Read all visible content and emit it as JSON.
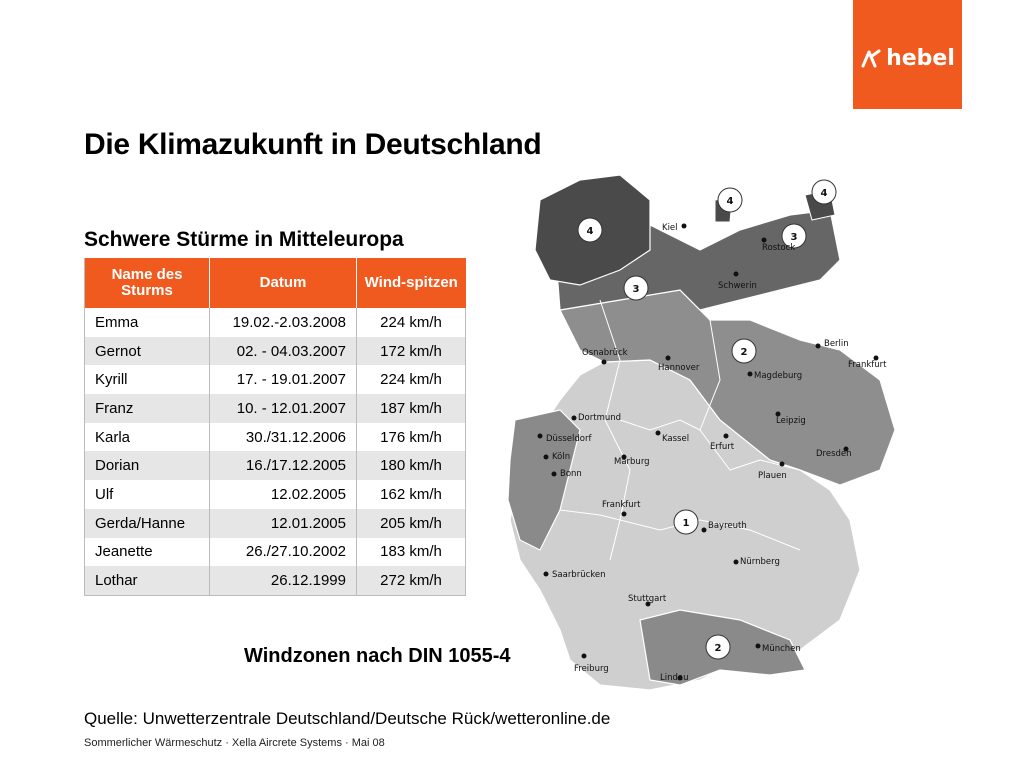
{
  "logo": {
    "text": "hebel",
    "icon": "hebel-logo-icon",
    "color": "#f05a1e"
  },
  "title": "Die Klimazukunft in Deutschland",
  "subtitle": "Schwere Stürme in Mitteleuropa",
  "table": {
    "headers": [
      "Name des Sturms",
      "Datum",
      "Wind-spitzen"
    ],
    "rows": [
      {
        "name": "Emma",
        "date": "19.02.-2.03.2008",
        "wind": "224 km/h"
      },
      {
        "name": "Gernot",
        "date": "02. - 04.03.2007",
        "wind": "172 km/h"
      },
      {
        "name": "Kyrill",
        "date": "17. - 19.01.2007",
        "wind": "224 km/h"
      },
      {
        "name": "Franz",
        "date": "10. - 12.01.2007",
        "wind": "187 km/h"
      },
      {
        "name": "Karla",
        "date": "30./31.12.2006",
        "wind": "176 km/h"
      },
      {
        "name": "Dorian",
        "date": "16./17.12.2005",
        "wind": "180 km/h"
      },
      {
        "name": "Ulf",
        "date": "12.02.2005",
        "wind": "162 km/h"
      },
      {
        "name": "Gerda/Hanne",
        "date": "12.01.2005",
        "wind": "205 km/h"
      },
      {
        "name": "Jeanette",
        "date": "26./27.10.2002",
        "wind": "183 km/h"
      },
      {
        "name": "Lothar",
        "date": "26.12.1999",
        "wind": "272 km/h"
      }
    ]
  },
  "map": {
    "caption": "Windzonen nach DIN 1055-4",
    "zones": [
      "4",
      "4",
      "4",
      "3",
      "3",
      "2",
      "1",
      "2"
    ],
    "cities": [
      "Kiel",
      "Rostock",
      "Schwerin",
      "Osnabrück",
      "Hannover",
      "Berlin",
      "Frankfurt",
      "Magdeburg",
      "Dortmund",
      "Düsseldorf",
      "Kassel",
      "Leipzig",
      "Erfurt",
      "Dresden",
      "Köln",
      "Bonn",
      "Marburg",
      "Plauen",
      "Frankfurt",
      "Bayreuth",
      "Nürnberg",
      "Saarbrücken",
      "Stuttgart",
      "München",
      "Freiburg",
      "Lindau"
    ]
  },
  "source": "Quelle: Unwetterzentrale Deutschland/Deutsche Rück/wetteronline.de",
  "footer": "Sommerlicher Wärmeschutz · Xella Aircrete Systems · Mai 08"
}
